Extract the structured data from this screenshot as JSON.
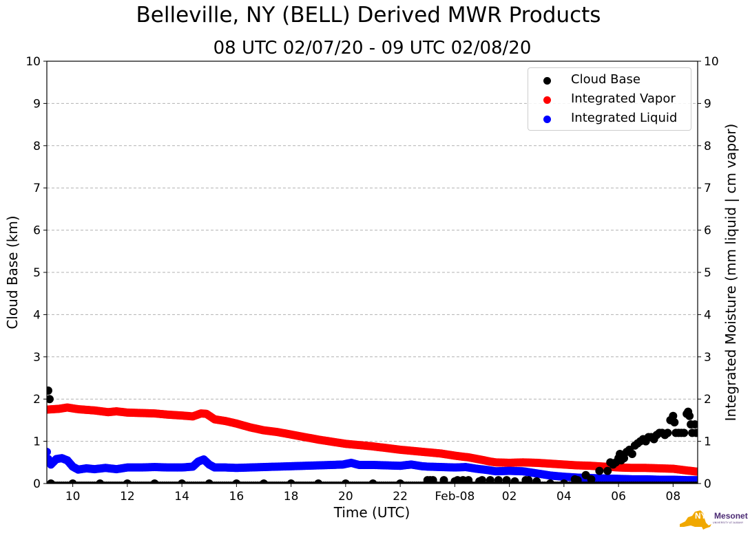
{
  "header": {
    "title": "Belleville, NY (BELL) Derived MWR Products",
    "subtitle": "08 UTC 02/07/20 - 09 UTC 02/08/20"
  },
  "logo": {
    "nys": "NYS",
    "mesonet": "Mesonet",
    "sub": "UNIVERSITY AT ALBANY",
    "colors": {
      "state": "#f0a800",
      "text": "#4b2a73"
    }
  },
  "chart_data": {
    "type": "scatter",
    "title": "Belleville, NY (BELL) Derived MWR Products",
    "subtitle": "08 UTC 02/07/20 - 09 UTC 02/08/20",
    "xlabel": "Time (UTC)",
    "ylabel": "Cloud Base (km)",
    "ylabel_right": "Integrated Moisture (mm liquid | cm vapor)",
    "x_units": "hours since 00 UTC 02/07/20",
    "xlim": [
      9.05,
      32.9
    ],
    "ylim": [
      0,
      10
    ],
    "ylim_right": [
      0,
      10
    ],
    "x_ticks": [
      {
        "x": 10,
        "label": "10"
      },
      {
        "x": 12,
        "label": "12"
      },
      {
        "x": 14,
        "label": "14"
      },
      {
        "x": 16,
        "label": "16"
      },
      {
        "x": 18,
        "label": "18"
      },
      {
        "x": 20,
        "label": "20"
      },
      {
        "x": 22,
        "label": "22"
      },
      {
        "x": 24,
        "label": "Feb-08"
      },
      {
        "x": 26,
        "label": "02"
      },
      {
        "x": 28,
        "label": "04"
      },
      {
        "x": 30,
        "label": "06"
      },
      {
        "x": 32,
        "label": "08"
      }
    ],
    "y_ticks": [
      "0",
      "1",
      "2",
      "3",
      "4",
      "5",
      "6",
      "7",
      "8",
      "9",
      "10"
    ],
    "grid": "horizontal dashed",
    "legend_position": "top-right",
    "series": [
      {
        "name": "Cloud Base",
        "color": "#000000",
        "points": [
          [
            9.1,
            2.2
          ],
          [
            9.15,
            2.0
          ],
          [
            9.2,
            0.0
          ],
          [
            10,
            0.0
          ],
          [
            11,
            0.0
          ],
          [
            12,
            0.0
          ],
          [
            13,
            0.0
          ],
          [
            14,
            0.0
          ],
          [
            15,
            0.0
          ],
          [
            16,
            0.0
          ],
          [
            17,
            0.0
          ],
          [
            18,
            0.0
          ],
          [
            19,
            0.0
          ],
          [
            20,
            0.0
          ],
          [
            21,
            0.0
          ],
          [
            22,
            0.0
          ],
          [
            23.0,
            0.08
          ],
          [
            23.1,
            0.08
          ],
          [
            23.2,
            0.08
          ],
          [
            23.6,
            0.08
          ],
          [
            24.0,
            0.05
          ],
          [
            24.1,
            0.08
          ],
          [
            24.3,
            0.08
          ],
          [
            24.5,
            0.08
          ],
          [
            24.9,
            0.05
          ],
          [
            25.0,
            0.08
          ],
          [
            25.3,
            0.08
          ],
          [
            25.6,
            0.08
          ],
          [
            25.9,
            0.08
          ],
          [
            26.2,
            0.05
          ],
          [
            26.6,
            0.08
          ],
          [
            26.7,
            0.08
          ],
          [
            27.0,
            0.05
          ],
          [
            27.5,
            0.0
          ],
          [
            28.0,
            0.0
          ],
          [
            28.4,
            0.1
          ],
          [
            28.5,
            0.08
          ],
          [
            28.8,
            0.2
          ],
          [
            29.0,
            0.1
          ],
          [
            29.3,
            0.3
          ],
          [
            29.6,
            0.3
          ],
          [
            29.7,
            0.5
          ],
          [
            29.8,
            0.45
          ],
          [
            29.9,
            0.5
          ],
          [
            30.0,
            0.6
          ],
          [
            30.05,
            0.7
          ],
          [
            30.1,
            0.55
          ],
          [
            30.2,
            0.6
          ],
          [
            30.3,
            0.75
          ],
          [
            30.4,
            0.8
          ],
          [
            30.5,
            0.7
          ],
          [
            30.6,
            0.9
          ],
          [
            30.7,
            0.95
          ],
          [
            30.8,
            1.0
          ],
          [
            30.9,
            1.05
          ],
          [
            31.0,
            1.0
          ],
          [
            31.1,
            1.1
          ],
          [
            31.2,
            1.1
          ],
          [
            31.3,
            1.05
          ],
          [
            31.4,
            1.15
          ],
          [
            31.5,
            1.2
          ],
          [
            31.6,
            1.2
          ],
          [
            31.7,
            1.15
          ],
          [
            31.8,
            1.2
          ],
          [
            31.9,
            1.5
          ],
          [
            32.0,
            1.6
          ],
          [
            32.05,
            1.45
          ],
          [
            32.1,
            1.2
          ],
          [
            32.2,
            1.2
          ],
          [
            32.3,
            1.2
          ],
          [
            32.4,
            1.2
          ],
          [
            32.5,
            1.65
          ],
          [
            32.55,
            1.7
          ],
          [
            32.6,
            1.6
          ],
          [
            32.65,
            1.4
          ],
          [
            32.7,
            1.2
          ],
          [
            32.8,
            1.4
          ],
          [
            32.85,
            1.2
          ]
        ]
      },
      {
        "name": "Integrated Vapor",
        "color": "#ff0000",
        "points": [
          [
            9.05,
            1.75
          ],
          [
            9.5,
            1.77
          ],
          [
            9.8,
            1.8
          ],
          [
            10.2,
            1.76
          ],
          [
            10.8,
            1.73
          ],
          [
            11.3,
            1.69
          ],
          [
            11.6,
            1.71
          ],
          [
            12.0,
            1.68
          ],
          [
            12.5,
            1.67
          ],
          [
            13.0,
            1.66
          ],
          [
            13.5,
            1.63
          ],
          [
            14.0,
            1.61
          ],
          [
            14.4,
            1.59
          ],
          [
            14.7,
            1.66
          ],
          [
            14.9,
            1.65
          ],
          [
            15.2,
            1.52
          ],
          [
            15.6,
            1.48
          ],
          [
            16.0,
            1.42
          ],
          [
            16.5,
            1.33
          ],
          [
            17.0,
            1.26
          ],
          [
            17.5,
            1.22
          ],
          [
            18.0,
            1.16
          ],
          [
            18.5,
            1.1
          ],
          [
            19.0,
            1.04
          ],
          [
            19.5,
            0.99
          ],
          [
            20.0,
            0.94
          ],
          [
            20.5,
            0.91
          ],
          [
            21.0,
            0.88
          ],
          [
            21.5,
            0.84
          ],
          [
            22.0,
            0.8
          ],
          [
            22.5,
            0.77
          ],
          [
            23.0,
            0.74
          ],
          [
            23.5,
            0.71
          ],
          [
            24.0,
            0.66
          ],
          [
            24.5,
            0.62
          ],
          [
            25.0,
            0.56
          ],
          [
            25.3,
            0.52
          ],
          [
            25.5,
            0.5
          ],
          [
            26.0,
            0.49
          ],
          [
            26.5,
            0.5
          ],
          [
            27.0,
            0.49
          ],
          [
            27.5,
            0.47
          ],
          [
            28.0,
            0.45
          ],
          [
            28.5,
            0.43
          ],
          [
            29.0,
            0.42
          ],
          [
            29.5,
            0.4
          ],
          [
            30.0,
            0.38
          ],
          [
            30.5,
            0.37
          ],
          [
            31.0,
            0.37
          ],
          [
            31.5,
            0.36
          ],
          [
            32.0,
            0.35
          ],
          [
            32.5,
            0.31
          ],
          [
            32.9,
            0.28
          ]
        ]
      },
      {
        "name": "Integrated Liquid",
        "color": "#0000ff",
        "points": [
          [
            9.05,
            0.75
          ],
          [
            9.1,
            0.58
          ],
          [
            9.2,
            0.45
          ],
          [
            9.4,
            0.58
          ],
          [
            9.6,
            0.6
          ],
          [
            9.8,
            0.55
          ],
          [
            10.0,
            0.4
          ],
          [
            10.2,
            0.33
          ],
          [
            10.5,
            0.36
          ],
          [
            10.8,
            0.34
          ],
          [
            11.2,
            0.37
          ],
          [
            11.6,
            0.34
          ],
          [
            12.0,
            0.38
          ],
          [
            12.5,
            0.38
          ],
          [
            13.0,
            0.39
          ],
          [
            13.5,
            0.38
          ],
          [
            14.0,
            0.38
          ],
          [
            14.4,
            0.4
          ],
          [
            14.6,
            0.52
          ],
          [
            14.8,
            0.57
          ],
          [
            15.0,
            0.45
          ],
          [
            15.2,
            0.38
          ],
          [
            15.6,
            0.38
          ],
          [
            16.0,
            0.37
          ],
          [
            16.5,
            0.38
          ],
          [
            17.0,
            0.39
          ],
          [
            17.5,
            0.4
          ],
          [
            18.0,
            0.41
          ],
          [
            18.5,
            0.42
          ],
          [
            19.0,
            0.43
          ],
          [
            19.5,
            0.44
          ],
          [
            19.9,
            0.45
          ],
          [
            20.2,
            0.49
          ],
          [
            20.5,
            0.44
          ],
          [
            21.0,
            0.44
          ],
          [
            21.5,
            0.43
          ],
          [
            22.0,
            0.42
          ],
          [
            22.4,
            0.45
          ],
          [
            22.8,
            0.41
          ],
          [
            23.0,
            0.4
          ],
          [
            23.5,
            0.39
          ],
          [
            24.0,
            0.38
          ],
          [
            24.4,
            0.39
          ],
          [
            24.8,
            0.35
          ],
          [
            25.2,
            0.32
          ],
          [
            25.5,
            0.29
          ],
          [
            26.0,
            0.3
          ],
          [
            26.5,
            0.29
          ],
          [
            27.0,
            0.24
          ],
          [
            27.5,
            0.19
          ],
          [
            28.0,
            0.16
          ],
          [
            28.5,
            0.14
          ],
          [
            29.0,
            0.13
          ],
          [
            29.5,
            0.12
          ],
          [
            30.0,
            0.11
          ],
          [
            30.5,
            0.1
          ],
          [
            31.0,
            0.1
          ],
          [
            31.5,
            0.09
          ],
          [
            32.0,
            0.09
          ],
          [
            32.5,
            0.08
          ],
          [
            32.9,
            0.08
          ]
        ]
      }
    ]
  }
}
